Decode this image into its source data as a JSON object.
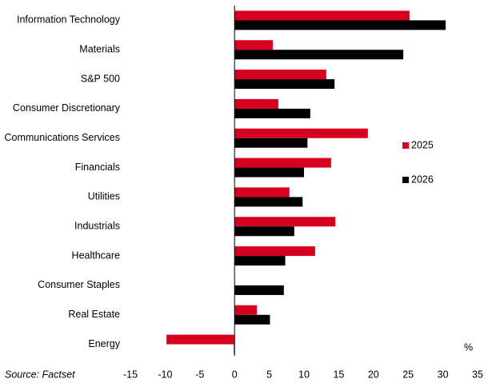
{
  "chart_data": {
    "type": "bar",
    "orientation": "horizontal",
    "categories": [
      "Information Technology",
      "Materials",
      "S&P 500",
      "Consumer Discretionary",
      "Communications Services",
      "Financials",
      "Utilities",
      "Industrials",
      "Healthcare",
      "Consumer Staples",
      "Real Estate",
      "Energy"
    ],
    "series": [
      {
        "name": "2025",
        "color": "#d7001e",
        "values": [
          25.2,
          5.5,
          13.2,
          6.3,
          19.2,
          13.9,
          7.9,
          14.5,
          11.6,
          0,
          3.2,
          -9.8
        ]
      },
      {
        "name": "2026",
        "color": "#000000",
        "values": [
          30.4,
          24.3,
          14.4,
          10.9,
          10.5,
          10.0,
          9.8,
          8.6,
          7.3,
          7.1,
          5.1,
          -0.1
        ]
      }
    ],
    "xlim": [
      -15,
      35
    ],
    "xticks": [
      -15,
      -10,
      -5,
      0,
      5,
      10,
      15,
      20,
      25,
      30,
      35
    ],
    "unit_label": "%",
    "source": "Source: Factset",
    "legend": "right",
    "grid": false
  }
}
